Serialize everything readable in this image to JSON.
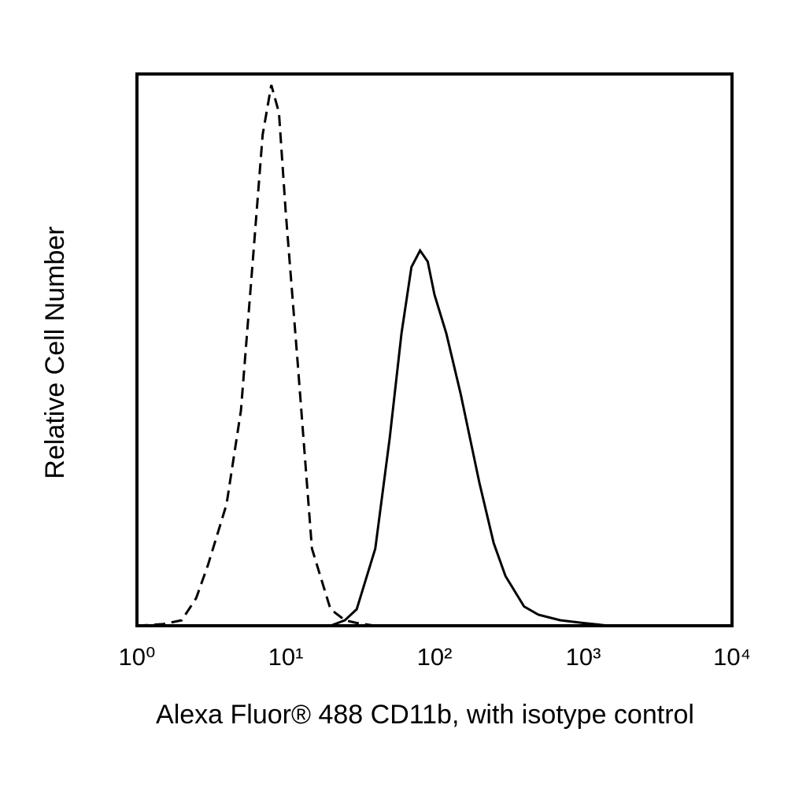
{
  "chart_data": {
    "type": "line",
    "x_label": "Alexa Fluor® 488 CD11b, with isotype control",
    "y_label": "Relative Cell Number",
    "xscale": "log",
    "xlim": [
      1,
      10000
    ],
    "ylim": [
      0,
      100
    ],
    "xticks": [
      {
        "value": 1,
        "label": "10⁰"
      },
      {
        "value": 10,
        "label": "10¹"
      },
      {
        "value": 100,
        "label": "10²"
      },
      {
        "value": 1000,
        "label": "10³"
      },
      {
        "value": 10000,
        "label": "10⁴"
      }
    ],
    "x": [
      1,
      1.5,
      2,
      2.5,
      3,
      4,
      5,
      6,
      7,
      8,
      9,
      10,
      12,
      15,
      20,
      25,
      30,
      40,
      50,
      60,
      70,
      80,
      90,
      100,
      120,
      150,
      200,
      250,
      300,
      400,
      500,
      700,
      1000,
      1500,
      2000
    ],
    "series": [
      {
        "color": "#000000",
        "line_style": "dashed",
        "values": [
          0,
          0.3,
          1,
          5,
          11,
          22,
          39,
          66,
          89,
          98,
          93,
          75,
          48,
          14,
          3,
          1,
          0.5,
          0,
          0,
          0,
          0,
          0,
          0,
          0,
          0,
          0,
          0,
          0,
          0,
          0,
          0,
          0,
          0,
          0,
          0
        ]
      },
      {
        "color": "#000000",
        "line_style": "solid",
        "values": [
          0,
          0,
          0,
          0,
          0,
          0,
          0,
          0,
          0,
          0,
          0,
          0,
          0,
          0,
          0,
          1,
          3,
          14,
          34,
          53,
          65,
          68,
          66,
          60,
          53,
          42,
          26,
          15,
          9,
          3.5,
          2,
          1,
          0.5,
          0,
          0
        ]
      }
    ]
  }
}
